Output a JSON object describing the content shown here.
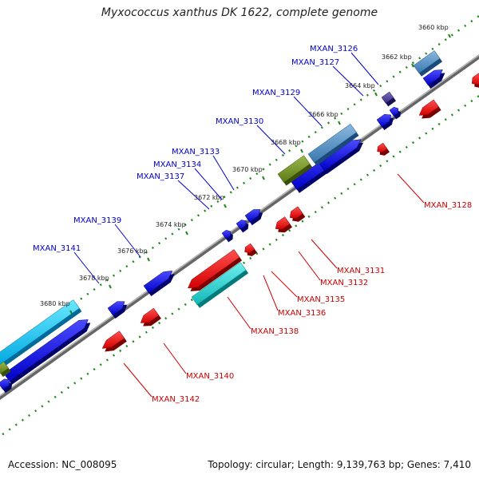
{
  "title": "Myxococcus xanthus DK 1622, complete genome",
  "accession": "Accession: NC_008095",
  "topology_info": "Topology: circular; Length: 9,139,763 bp; Genes: 7,410",
  "colors": {
    "forward_label": "#0000cc",
    "reverse_label": "#cc0000",
    "backbone": "#8a8a8a",
    "tick_dots": "#1a8a1a"
  },
  "kbp_labels": [
    "3660 kbp",
    "3662 kbp",
    "3664 kbp",
    "3666 kbp",
    "3668 kbp",
    "3670 kbp",
    "3672 kbp",
    "3674 kbp",
    "3676 kbp",
    "3678 kbp",
    "3680 kbp"
  ],
  "forward_genes": [
    "MXAN_3126",
    "MXAN_3127",
    "MXAN_3129",
    "MXAN_3130",
    "MXAN_3133",
    "MXAN_3134",
    "MXAN_3137",
    "MXAN_3139",
    "MXAN_3141"
  ],
  "reverse_genes": [
    "MXAN_3128",
    "MXAN_3131",
    "MXAN_3132",
    "MXAN_3135",
    "MXAN_3136",
    "MXAN_3138",
    "MXAN_3140",
    "MXAN_3142"
  ]
}
